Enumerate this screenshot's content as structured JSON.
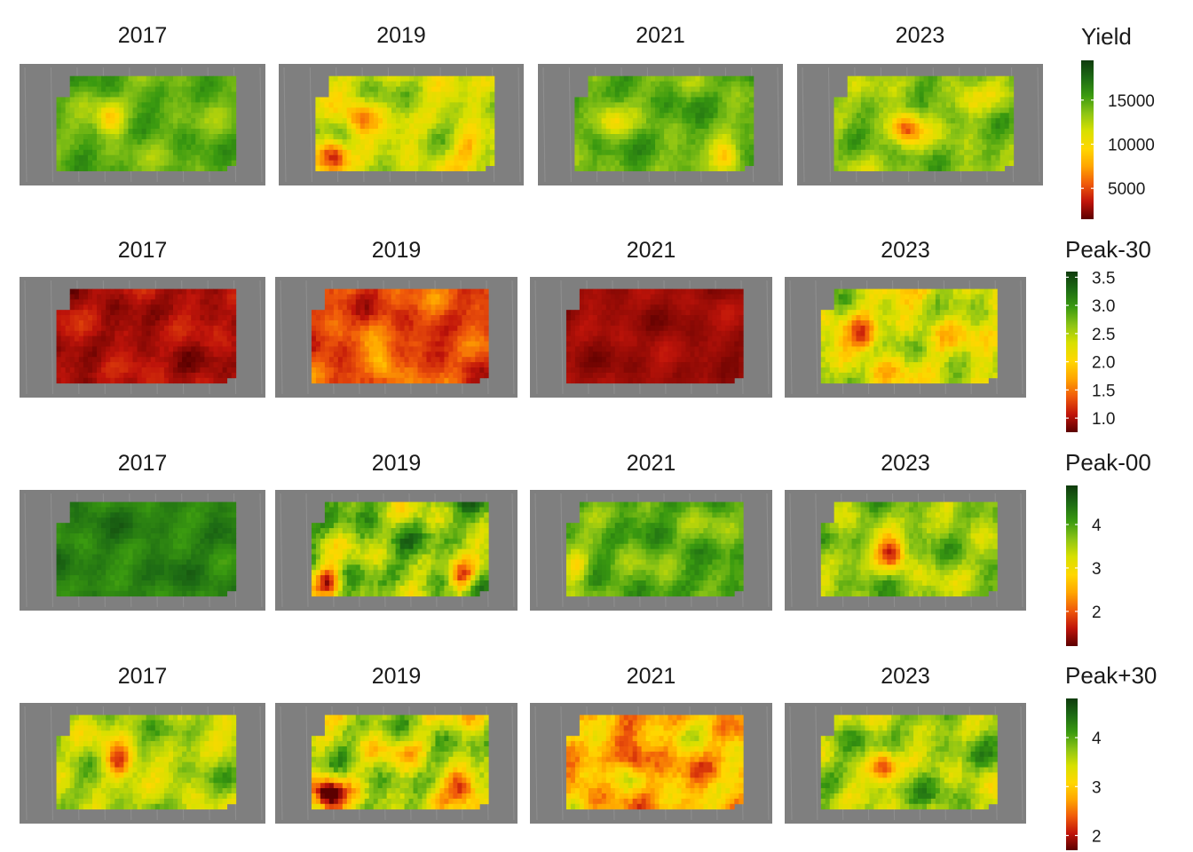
{
  "chart_data": {
    "type": "heatmap",
    "description_units": "Field maps faceted by year (columns) and variable (rows); each row has its own continuous color legend.",
    "years": [
      "2017",
      "2019",
      "2021",
      "2023"
    ],
    "palette": [
      "#5c0000",
      "#c0140a",
      "#f05a0a",
      "#ffa500",
      "#ffd700",
      "#d8e000",
      "#8cc415",
      "#3a9a10",
      "#1d6b14",
      "#0f3b0d"
    ],
    "background_color": "#7f7f7f",
    "rows": [
      {
        "variable": "Yield",
        "legend_title": "Yield",
        "range": [
          1500,
          19500
        ],
        "legend_ticks": [
          5000,
          10000,
          15000
        ],
        "tick_labels": [
          "5000",
          "10000",
          "15000"
        ],
        "panels": [
          {
            "year": "2017",
            "mean": 14500,
            "spread": 2200,
            "hotspots": [
              {
                "u": 0.3,
                "v": 0.45,
                "depth": 5500
              }
            ]
          },
          {
            "year": "2019",
            "mean": 12000,
            "spread": 3500,
            "hotspots": [
              {
                "u": 0.1,
                "v": 0.85,
                "depth": 8000
              },
              {
                "u": 0.25,
                "v": 0.45,
                "depth": 6000
              },
              {
                "u": 0.85,
                "v": 0.75,
                "depth": 5000
              }
            ]
          },
          {
            "year": "2021",
            "mean": 14500,
            "spread": 2500,
            "hotspots": [
              {
                "u": 0.2,
                "v": 0.5,
                "depth": 4000
              },
              {
                "u": 0.85,
                "v": 0.85,
                "depth": 7000
              }
            ]
          },
          {
            "year": "2023",
            "mean": 13500,
            "spread": 3000,
            "hotspots": [
              {
                "u": 0.4,
                "v": 0.55,
                "depth": 8000
              },
              {
                "u": 0.75,
                "v": 0.3,
                "depth": 3000
              }
            ]
          }
        ]
      },
      {
        "variable": "Peak-30",
        "legend_title": "Peak-30",
        "range": [
          0.75,
          3.6
        ],
        "legend_ticks": [
          1.0,
          1.5,
          2.0,
          2.5,
          3.0,
          3.5
        ],
        "tick_labels": [
          "1.0",
          "1.5",
          "2.0",
          "2.5",
          "3.0",
          "3.5"
        ],
        "panels": [
          {
            "year": "2017",
            "mean": 1.0,
            "spread": 0.25,
            "hotspots": []
          },
          {
            "year": "2019",
            "mean": 1.3,
            "spread": 0.4,
            "hotspots": [
              {
                "u": 0.4,
                "v": 0.8,
                "depth": -0.7
              }
            ]
          },
          {
            "year": "2021",
            "mean": 0.95,
            "spread": 0.15,
            "hotspots": []
          },
          {
            "year": "2023",
            "mean": 2.3,
            "spread": 0.7,
            "hotspots": [
              {
                "u": 0.25,
                "v": 0.5,
                "depth": 1.0
              }
            ]
          }
        ]
      },
      {
        "variable": "Peak-00",
        "legend_title": "Peak-00",
        "range": [
          1.2,
          4.9
        ],
        "legend_ticks": [
          2,
          3,
          4
        ],
        "tick_labels": [
          "2",
          "3",
          "4"
        ],
        "panels": [
          {
            "year": "2017",
            "mean": 4.3,
            "spread": 0.35,
            "hotspots": []
          },
          {
            "year": "2019",
            "mean": 3.7,
            "spread": 1.0,
            "hotspots": [
              {
                "u": 0.1,
                "v": 0.85,
                "depth": 2.2
              },
              {
                "u": 0.85,
                "v": 0.8,
                "depth": 1.8
              }
            ]
          },
          {
            "year": "2021",
            "mean": 3.9,
            "spread": 0.6,
            "hotspots": [
              {
                "u": 0.05,
                "v": 0.7,
                "depth": 1.2
              }
            ]
          },
          {
            "year": "2023",
            "mean": 3.6,
            "spread": 0.7,
            "hotspots": [
              {
                "u": 0.4,
                "v": 0.55,
                "depth": 1.8
              }
            ]
          }
        ]
      },
      {
        "variable": "Peak+30",
        "legend_title": "Peak+30",
        "range": [
          1.7,
          4.8
        ],
        "legend_ticks": [
          2,
          3,
          4
        ],
        "tick_labels": [
          "2",
          "3",
          "4"
        ],
        "panels": [
          {
            "year": "2017",
            "mean": 3.6,
            "spread": 0.6,
            "hotspots": [
              {
                "u": 0.35,
                "v": 0.5,
                "depth": 1.5
              }
            ]
          },
          {
            "year": "2019",
            "mean": 3.5,
            "spread": 0.9,
            "hotspots": [
              {
                "u": 0.1,
                "v": 0.85,
                "depth": 1.8
              },
              {
                "u": 0.85,
                "v": 0.75,
                "depth": 1.2
              }
            ]
          },
          {
            "year": "2021",
            "mean": 2.9,
            "spread": 0.8,
            "hotspots": [
              {
                "u": 0.4,
                "v": 0.5,
                "depth": 0.9
              }
            ]
          },
          {
            "year": "2023",
            "mean": 3.7,
            "spread": 0.7,
            "hotspots": [
              {
                "u": 0.35,
                "v": 0.55,
                "depth": 1.5
              }
            ]
          }
        ]
      }
    ]
  }
}
